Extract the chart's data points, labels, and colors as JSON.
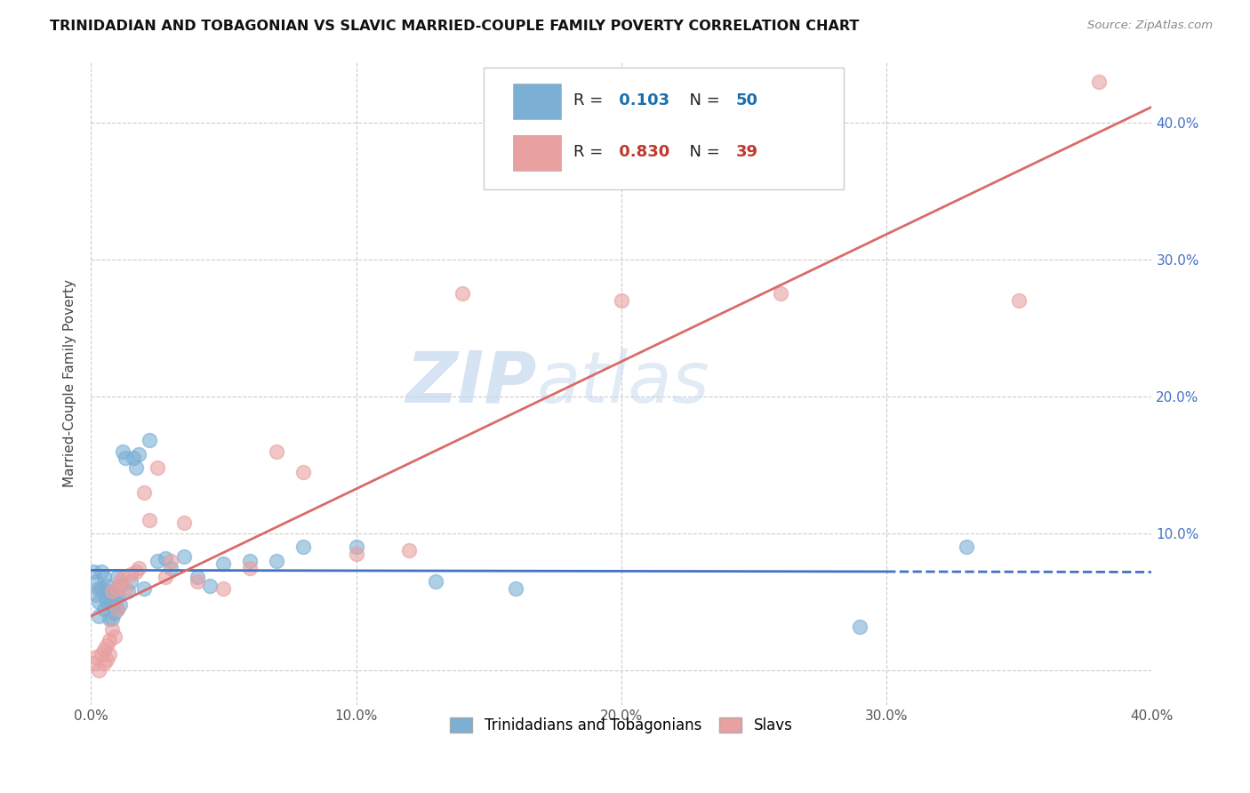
{
  "title": "TRINIDADIAN AND TOBAGONIAN VS SLAVIC MARRIED-COUPLE FAMILY POVERTY CORRELATION CHART",
  "source": "Source: ZipAtlas.com",
  "ylabel": "Married-Couple Family Poverty",
  "xlim": [
    0,
    0.4
  ],
  "ylim": [
    -0.025,
    0.445
  ],
  "xticks": [
    0.0,
    0.1,
    0.2,
    0.3,
    0.4
  ],
  "yticks": [
    0.0,
    0.1,
    0.2,
    0.3,
    0.4
  ],
  "xtick_labels": [
    "0.0%",
    "10.0%",
    "20.0%",
    "30.0%",
    "40.0%"
  ],
  "ytick_labels": [
    "",
    "10.0%",
    "20.0%",
    "30.0%",
    "40.0%"
  ],
  "blue_R": 0.103,
  "blue_N": 50,
  "pink_R": 0.83,
  "pink_N": 39,
  "blue_color": "#7bafd4",
  "pink_color": "#e8a0a0",
  "blue_line_color": "#4472c4",
  "pink_line_color": "#d96b6b",
  "watermark_zip": "ZIP",
  "watermark_atlas": "atlas",
  "background_color": "#ffffff",
  "grid_color": "#cccccc",
  "blue_scatter_x": [
    0.001,
    0.002,
    0.002,
    0.003,
    0.003,
    0.003,
    0.004,
    0.004,
    0.005,
    0.005,
    0.005,
    0.006,
    0.006,
    0.007,
    0.007,
    0.007,
    0.008,
    0.008,
    0.008,
    0.009,
    0.009,
    0.01,
    0.01,
    0.01,
    0.011,
    0.011,
    0.012,
    0.013,
    0.014,
    0.015,
    0.016,
    0.017,
    0.018,
    0.02,
    0.022,
    0.025,
    0.028,
    0.03,
    0.035,
    0.04,
    0.045,
    0.05,
    0.06,
    0.07,
    0.08,
    0.1,
    0.13,
    0.16,
    0.29,
    0.33
  ],
  "blue_scatter_y": [
    0.072,
    0.065,
    0.055,
    0.06,
    0.05,
    0.04,
    0.072,
    0.06,
    0.068,
    0.055,
    0.045,
    0.062,
    0.05,
    0.058,
    0.048,
    0.038,
    0.055,
    0.048,
    0.038,
    0.052,
    0.042,
    0.068,
    0.055,
    0.045,
    0.062,
    0.048,
    0.16,
    0.155,
    0.058,
    0.065,
    0.155,
    0.148,
    0.158,
    0.06,
    0.168,
    0.08,
    0.082,
    0.075,
    0.083,
    0.068,
    0.062,
    0.078,
    0.08,
    0.08,
    0.09,
    0.09,
    0.065,
    0.06,
    0.032,
    0.09
  ],
  "blue_data_range": [
    0.0,
    0.3
  ],
  "pink_scatter_x": [
    0.001,
    0.002,
    0.003,
    0.004,
    0.005,
    0.005,
    0.006,
    0.006,
    0.007,
    0.007,
    0.008,
    0.008,
    0.009,
    0.01,
    0.01,
    0.011,
    0.012,
    0.013,
    0.015,
    0.017,
    0.018,
    0.02,
    0.022,
    0.025,
    0.028,
    0.03,
    0.035,
    0.04,
    0.05,
    0.06,
    0.07,
    0.08,
    0.1,
    0.12,
    0.14,
    0.2,
    0.26,
    0.35,
    0.38
  ],
  "pink_scatter_y": [
    0.005,
    0.01,
    0.0,
    0.012,
    0.015,
    0.005,
    0.018,
    0.008,
    0.022,
    0.012,
    0.058,
    0.03,
    0.025,
    0.06,
    0.045,
    0.065,
    0.068,
    0.06,
    0.07,
    0.072,
    0.075,
    0.13,
    0.11,
    0.148,
    0.068,
    0.08,
    0.108,
    0.065,
    0.06,
    0.075,
    0.16,
    0.145,
    0.085,
    0.088,
    0.275,
    0.27,
    0.275,
    0.27,
    0.43
  ]
}
